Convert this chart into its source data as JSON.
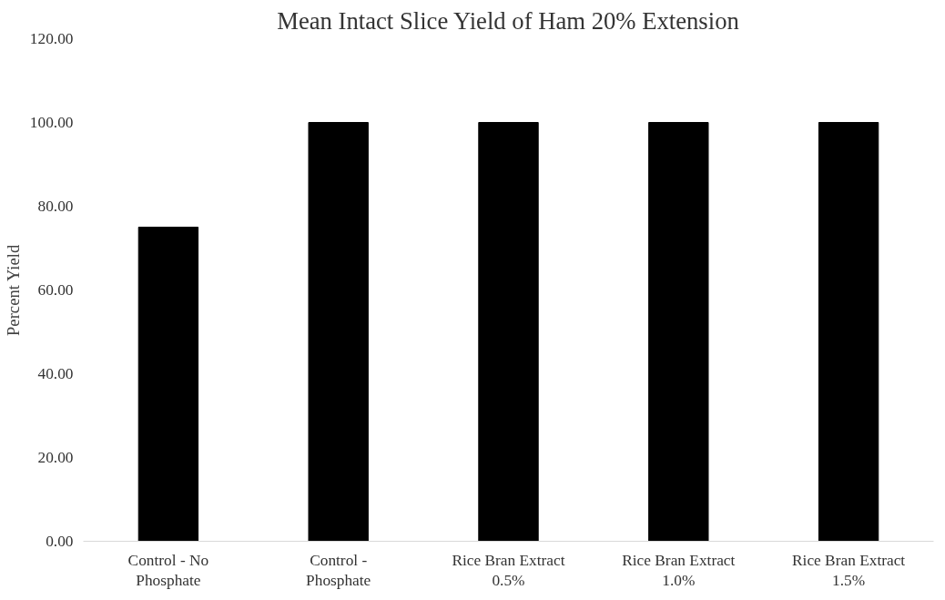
{
  "chart_data": {
    "type": "bar",
    "title": "Mean Intact Slice Yield of Ham 20% Extension",
    "ylabel": "Percent Yield",
    "categories": [
      "Control - No Phosphate",
      "Control - Phosphate",
      "Rice Bran Extract 0.5%",
      "Rice Bran Extract 1.0%",
      "Rice Bran Extract 1.5%"
    ],
    "values": [
      75,
      100,
      100,
      100,
      100
    ],
    "color": "#000000",
    "ylim": [
      0,
      120
    ],
    "yticks": [
      {
        "value": 0,
        "label": "0.00"
      },
      {
        "value": 20,
        "label": "20.00"
      },
      {
        "value": 40,
        "label": "40.00"
      },
      {
        "value": 60,
        "label": "60.00"
      },
      {
        "value": 80,
        "label": "80.00"
      },
      {
        "value": 100,
        "label": "100.00"
      },
      {
        "value": 120,
        "label": "120.00"
      }
    ],
    "grid": false
  }
}
